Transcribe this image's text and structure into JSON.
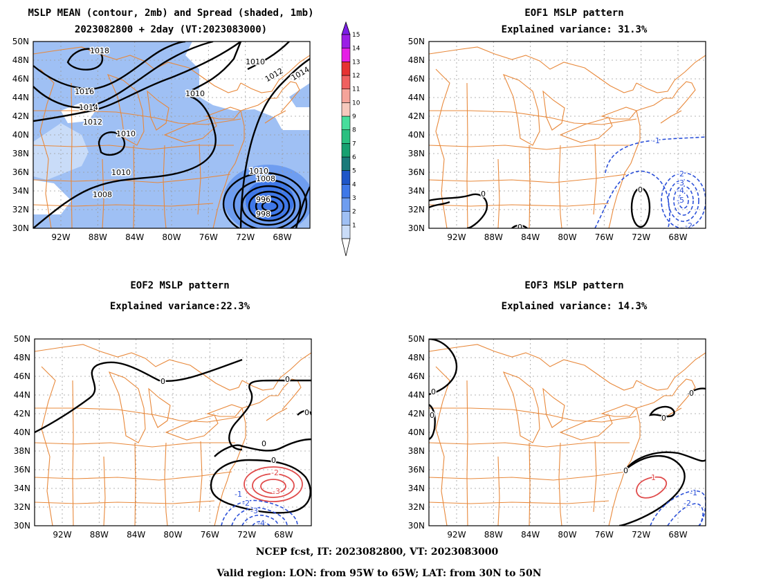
{
  "panels": {
    "mean": {
      "title": "MSLP MEAN (contour, 2mb) and Spread (shaded, 1mb)",
      "subtitle": "2023082800 + 2day (VT:2023083000)"
    },
    "eof1": {
      "title": "EOF1 MSLP pattern",
      "subtitle": "Explained variance: 31.3%"
    },
    "eof2": {
      "title": "EOF2 MSLP pattern",
      "subtitle": "Explained variance:22.3%"
    },
    "eof3": {
      "title": "EOF3 MSLP pattern",
      "subtitle": "Explained variance: 14.3%"
    }
  },
  "axes": {
    "lat_labels": [
      "30N",
      "32N",
      "34N",
      "36N",
      "38N",
      "40N",
      "42N",
      "44N",
      "46N",
      "48N",
      "50N"
    ],
    "lon_labels": [
      "92W",
      "88W",
      "84W",
      "80W",
      "76W",
      "72W",
      "68W"
    ]
  },
  "colorbar": {
    "labels": [
      "1",
      "2",
      "3",
      "4",
      "5",
      "6",
      "7",
      "8",
      "9",
      "10",
      "11",
      "12",
      "13",
      "14",
      "15"
    ],
    "colors": [
      "#c9dcf8",
      "#9fc0f4",
      "#6e9df0",
      "#3f78e8",
      "#1f56c8",
      "#1a7a7a",
      "#17a070",
      "#2ac080",
      "#48de9c",
      "#f7c9bd",
      "#f5a49a",
      "#f06060",
      "#e63232",
      "#e61ee6",
      "#9b1ee6"
    ]
  },
  "contour_labels": {
    "mean": [
      "1018",
      "1016",
      "1014",
      "1012",
      "1010",
      "1010",
      "1010",
      "1010",
      "1012",
      "1014",
      "1008",
      "1010",
      "1008",
      "996",
      "998"
    ],
    "eof1": [
      "-1",
      "0",
      "0",
      "0",
      "-2",
      "-3",
      "-4",
      "-5",
      "-2"
    ],
    "eof2": [
      "0",
      "0",
      "0",
      "0",
      "0",
      "-2",
      "-3",
      "-1",
      "-2",
      "-3",
      "-4"
    ],
    "eof3": [
      "0",
      "0",
      "0",
      "0",
      "0",
      "1",
      "-1",
      "-2"
    ]
  },
  "footer": {
    "line1": "NCEP fcst, IT: 2023082800, VT: 2023083000",
    "line2": "Valid region: LON: from 95W to 65W; LAT: from 30N to 50N"
  }
}
